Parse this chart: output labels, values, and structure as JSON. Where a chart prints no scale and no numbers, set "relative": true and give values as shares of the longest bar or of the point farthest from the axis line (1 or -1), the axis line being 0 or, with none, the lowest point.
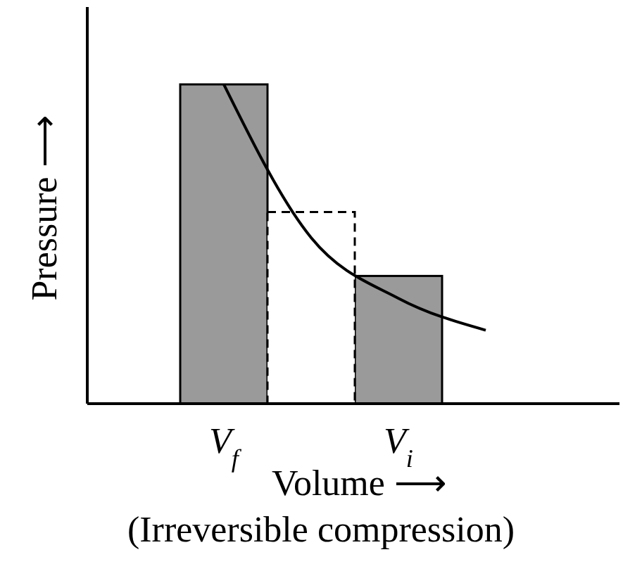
{
  "chart_data": {
    "type": "bar",
    "relative": true,
    "xlabel": "Volume ⟶",
    "ylabel": "Pressure ⟶",
    "annotations": [
      "(Irreversible compression)"
    ],
    "categories": [
      null,
      "V$_{f}$",
      null,
      "V$_{i}$",
      null,
      null
    ],
    "series": [
      {
        "color": "#9a9a9a",
        "line_style": "solid",
        "values": [
          null,
          1.0,
          null,
          0.4,
          null,
          null
        ]
      },
      {
        "color": "#ffffff",
        "line_style": "dashed",
        "values": [
          null,
          null,
          0.6,
          null,
          null,
          null
        ]
      },
      {
        "type": "line",
        "color": "#000000",
        "line_style": "solid",
        "values": [
          null,
          1.0,
          0.52,
          0.33,
          0.23,
          null
        ]
      }
    ]
  }
}
